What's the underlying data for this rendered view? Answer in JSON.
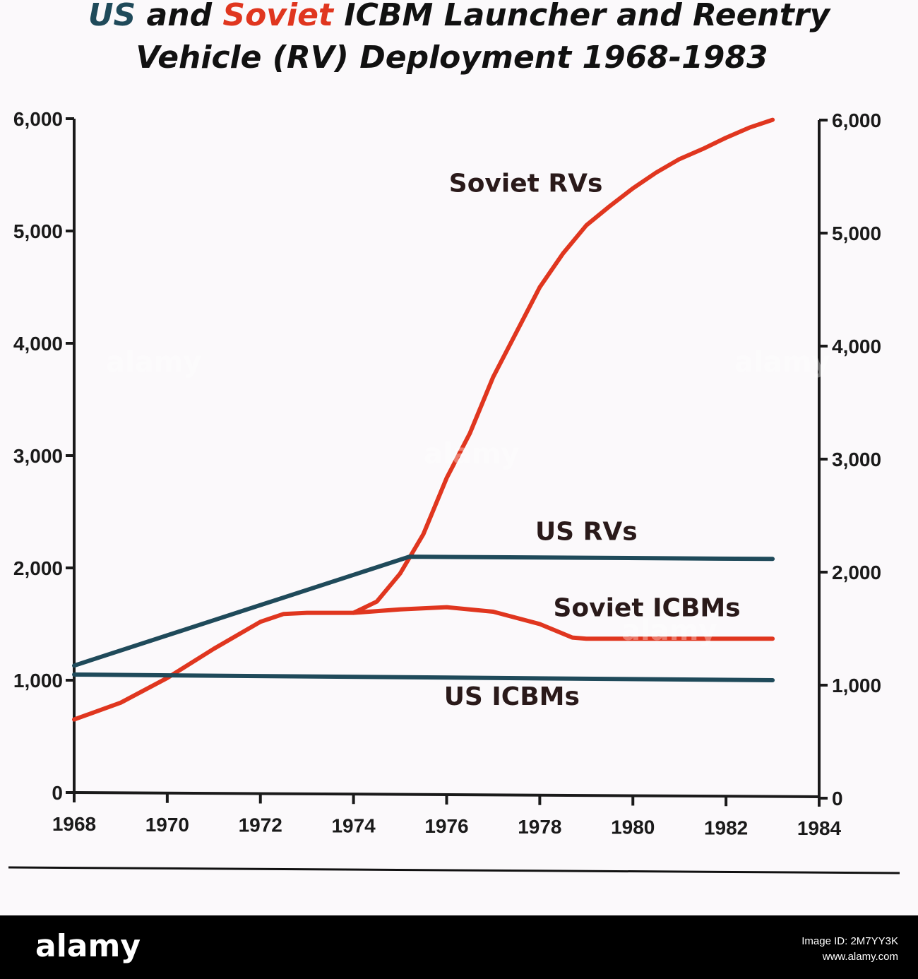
{
  "title": {
    "line1_us": "US",
    "line1_and": " and ",
    "line1_soviet": "Soviet",
    "line1_rest": " ICBM Launcher and Reentry",
    "line2": "Vehicle (RV) Deployment 1968-1983"
  },
  "colors": {
    "us": "#1f4a5a",
    "soviet": "#e0361f",
    "axis": "#1a1a1a",
    "background": "#fbf9fb"
  },
  "chart_data": {
    "type": "line",
    "title": "US and Soviet ICBM Launcher and Reentry Vehicle (RV) Deployment 1968-1983",
    "xlabel": "",
    "ylabel": "",
    "xlim": [
      1968,
      1984
    ],
    "ylim": [
      0,
      6000
    ],
    "x_ticks": [
      "1968",
      "1970",
      "1972",
      "1974",
      "1976",
      "1978",
      "1980",
      "1982",
      "1984"
    ],
    "y_ticks_left": [
      "0",
      "1,000",
      "2,000",
      "3,000",
      "4,000",
      "5,000",
      "6,000"
    ],
    "y_ticks_right": [
      "0",
      "1,000",
      "2,000",
      "3,000",
      "4,000",
      "5,000",
      "6,000"
    ],
    "grid": false,
    "legend": "none",
    "series": [
      {
        "name": "Soviet RVs",
        "color": "soviet",
        "points": [
          [
            1968,
            650
          ],
          [
            1969,
            800
          ],
          [
            1970,
            1020
          ],
          [
            1971,
            1280
          ],
          [
            1972,
            1520
          ],
          [
            1972.5,
            1590
          ],
          [
            1973,
            1600
          ],
          [
            1974,
            1600
          ],
          [
            1974.5,
            1700
          ],
          [
            1975,
            1950
          ],
          [
            1975.5,
            2300
          ],
          [
            1976,
            2800
          ],
          [
            1976.5,
            3200
          ],
          [
            1977,
            3700
          ],
          [
            1977.5,
            4100
          ],
          [
            1978,
            4500
          ],
          [
            1978.5,
            4800
          ],
          [
            1979,
            5050
          ],
          [
            1979.5,
            5220
          ],
          [
            1980,
            5380
          ],
          [
            1980.5,
            5520
          ],
          [
            1981,
            5640
          ],
          [
            1981.5,
            5730
          ],
          [
            1982,
            5830
          ],
          [
            1982.5,
            5920
          ],
          [
            1983,
            5990
          ]
        ]
      },
      {
        "name": "US RVs",
        "color": "us",
        "points": [
          [
            1968,
            1130
          ],
          [
            1975.2,
            2100
          ],
          [
            1983,
            2080
          ]
        ]
      },
      {
        "name": "Soviet ICBMs",
        "color": "soviet",
        "points": [
          [
            1974,
            1600
          ],
          [
            1975,
            1630
          ],
          [
            1976,
            1650
          ],
          [
            1977,
            1610
          ],
          [
            1978,
            1500
          ],
          [
            1978.7,
            1380
          ],
          [
            1979,
            1370
          ],
          [
            1983,
            1370
          ]
        ]
      },
      {
        "name": "US ICBMs",
        "color": "us",
        "points": [
          [
            1968,
            1050
          ],
          [
            1983,
            1000
          ]
        ]
      }
    ],
    "annotations": [
      {
        "text": "Soviet RVs",
        "x": 1977.7,
        "y": 5350
      },
      {
        "text": "US RVs",
        "x": 1979,
        "y": 2250
      },
      {
        "text": "Soviet ICBMs",
        "x": 1980.3,
        "y": 1570
      },
      {
        "text": "US ICBMs",
        "x": 1977.4,
        "y": 780
      }
    ]
  },
  "footer": {
    "logo": "alamy",
    "image_id_label": "Image ID: 2M7YY3K",
    "site": "www.alamy.com"
  },
  "watermark": "alamy"
}
